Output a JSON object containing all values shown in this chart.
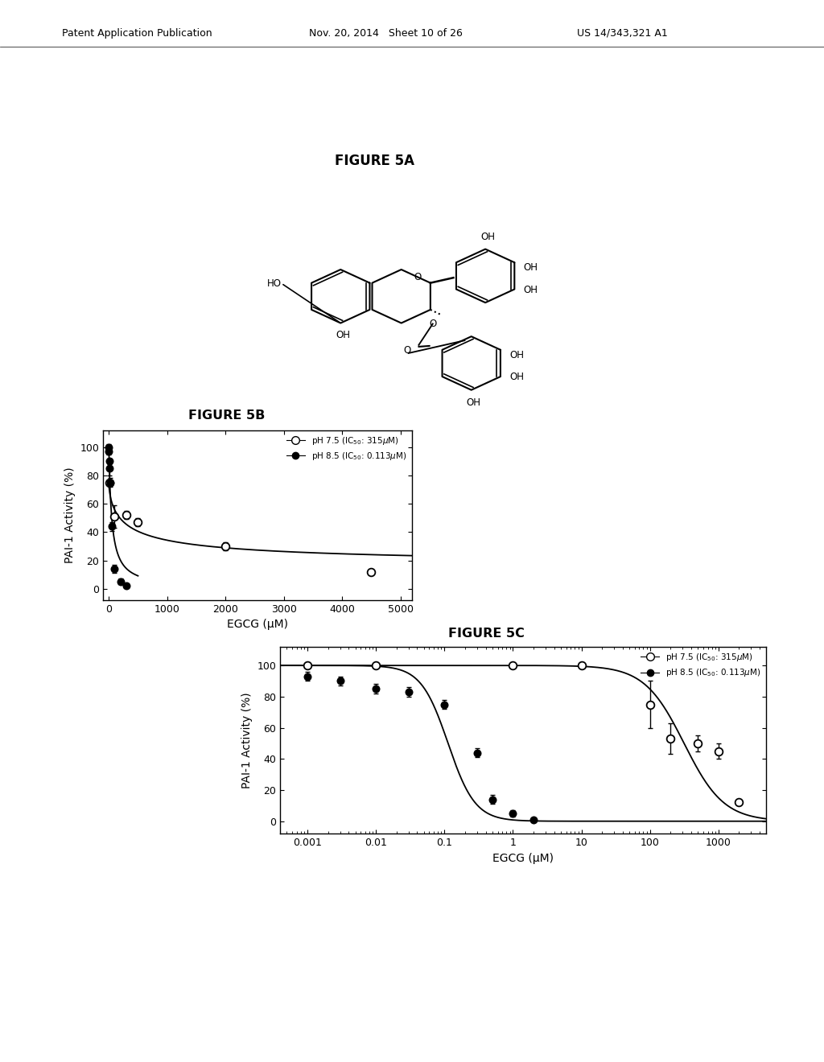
{
  "fig_width": 10.24,
  "fig_height": 13.2,
  "bg_color": "#ffffff",
  "fig5b_xlabel": "EGCG (μM)",
  "fig5b_ylabel": "PAI-1 Activity (%)",
  "fig5b_xlim": [
    -100,
    5200
  ],
  "fig5b_ylim": [
    -8,
    112
  ],
  "fig5b_xticks": [
    0,
    1000,
    2000,
    3000,
    4000,
    5000
  ],
  "fig5b_yticks": [
    0,
    20,
    40,
    60,
    80,
    100
  ],
  "fig5b_open_x": [
    10,
    100,
    300,
    500,
    2000,
    4500
  ],
  "fig5b_open_y": [
    75,
    51,
    52,
    47,
    30,
    12
  ],
  "fig5b_open_yerr": [
    0,
    8,
    3,
    3,
    3,
    0
  ],
  "fig5b_filled_x": [
    1,
    2,
    5,
    10,
    20,
    50,
    100,
    200,
    300
  ],
  "fig5b_filled_y": [
    100,
    97,
    90,
    85,
    75,
    44,
    14,
    5,
    2
  ],
  "fig5b_filled_yerr": [
    2,
    2,
    2,
    5,
    3,
    3,
    3,
    2,
    1
  ],
  "fig5c_xlabel": "EGCG (μM)",
  "fig5c_ylabel": "PAI-1 Activity (%)",
  "fig5c_ylim": [
    -8,
    112
  ],
  "fig5c_yticks": [
    0,
    20,
    40,
    60,
    80,
    100
  ],
  "fig5c_open_x": [
    0.001,
    0.01,
    1.0,
    10,
    100,
    200,
    500,
    1000,
    2000
  ],
  "fig5c_open_y": [
    100,
    100,
    100,
    100,
    75,
    53,
    50,
    45,
    12
  ],
  "fig5c_open_yerr": [
    0,
    0,
    0,
    0,
    15,
    10,
    5,
    5,
    0
  ],
  "fig5c_filled_x": [
    0.001,
    0.003,
    0.01,
    0.03,
    0.1,
    0.3,
    0.5,
    1.0,
    2.0
  ],
  "fig5c_filled_y": [
    93,
    90,
    85,
    83,
    75,
    44,
    14,
    5,
    1
  ],
  "fig5c_filled_yerr": [
    3,
    3,
    3,
    3,
    3,
    3,
    3,
    2,
    1
  ],
  "legend_open_label": "pH 7.5 (IC50: 315μM)",
  "legend_filled_label": "pH 8.5 (IC50: 0.113μM)"
}
